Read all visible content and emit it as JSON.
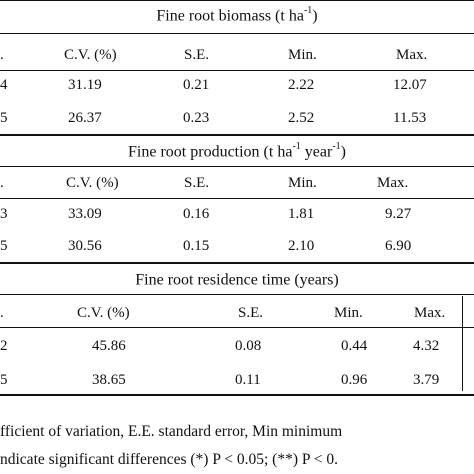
{
  "sections": [
    {
      "title_pre": "Fine root biomass (t ha",
      "title_sup1": "-1",
      "title_mid": "",
      "title_sup2": "",
      "title_post": ")",
      "headers": [
        ".",
        "C.V. (%)",
        "S.E.",
        "Min.",
        "Max."
      ],
      "rows": [
        [
          "4",
          "31.19",
          "0.21",
          "2.22",
          "12.07"
        ],
        [
          "5",
          "26.37",
          "0.23",
          "2.52",
          "11.53"
        ]
      ]
    },
    {
      "title_pre": "Fine root production (t ha",
      "title_sup1": "-1",
      "title_mid": " year",
      "title_sup2": "-1",
      "title_post": ")",
      "headers": [
        ".",
        "C.V. (%)",
        "S.E.",
        "Min.",
        "Max."
      ],
      "rows": [
        [
          "3",
          "33.09",
          "0.16",
          "1.81",
          "9.27"
        ],
        [
          "5",
          "30.56",
          "0.15",
          "2.10",
          "6.90"
        ]
      ]
    },
    {
      "title_pre": "Fine root residence time (years)",
      "title_sup1": "",
      "title_mid": "",
      "title_sup2": "",
      "title_post": "",
      "headers": [
        ".",
        "C.V. (%)",
        "S.E.",
        "Min.",
        "Max."
      ],
      "rows": [
        [
          "2",
          "45.86",
          "0.08",
          "0.44",
          "4.32"
        ],
        [
          "5",
          "38.65",
          "0.11",
          "0.96",
          "3.79"
        ]
      ]
    }
  ],
  "footnote": {
    "line1": "fficient of variation, E.E. standard error, Min minimum",
    "line2": "ndicate significant differences (*) P < 0.05; (**) P < 0."
  }
}
